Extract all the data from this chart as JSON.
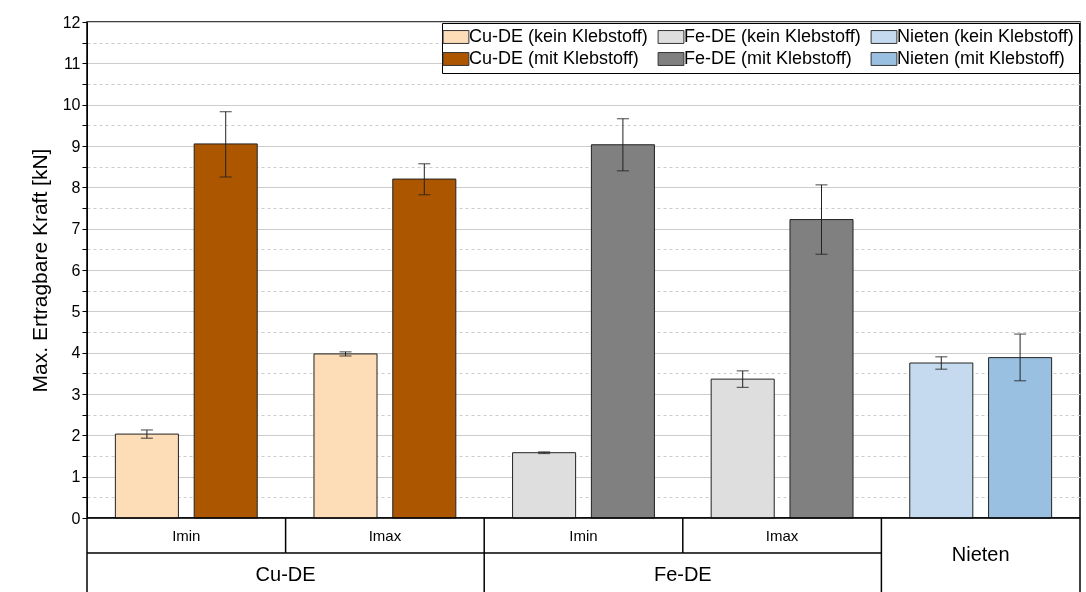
{
  "chart_data": {
    "type": "bar",
    "ylabel": "Max. Ertragbare Kraft [kN]",
    "categories": [
      "Imin",
      "Imax",
      "Imin",
      "Imax",
      "Nieten"
    ],
    "annotations": [
      "Cu-DE",
      "Fe-DE"
    ],
    "series": [
      {
        "name": "Cu-DE (kein Klebstoff)",
        "color": "#fddcb8",
        "values": [
          2.03,
          3.97,
          null,
          null,
          null
        ],
        "errors": [
          0.1,
          0.05,
          null,
          null,
          null
        ]
      },
      {
        "name": "Cu-DE (mit Klebstoff)",
        "color": "#ad5600",
        "values": [
          9.05,
          8.2,
          null,
          null,
          null
        ],
        "errors": [
          [
            8.25,
            9.83
          ],
          [
            7.82,
            8.57
          ],
          null,
          null,
          null
        ]
      },
      {
        "name": "Fe-DE (kein Klebstoff)",
        "color": "#dedede",
        "values": [
          null,
          null,
          1.58,
          3.36,
          null
        ],
        "errors": [
          null,
          null,
          0.02,
          [
            3.16,
            3.56
          ],
          null
        ]
      },
      {
        "name": "Fe-DE (mit Klebstoff)",
        "color": "#808080",
        "values": [
          null,
          null,
          9.03,
          7.22,
          null
        ],
        "errors": [
          null,
          null,
          [
            8.4,
            9.66
          ],
          [
            6.38,
            8.06
          ],
          null
        ]
      },
      {
        "name": "Nieten (kein Klebstoff)",
        "color": "#c5daee",
        "values": [
          null,
          null,
          null,
          null,
          3.75
        ],
        "errors": [
          null,
          null,
          null,
          null,
          [
            3.6,
            3.9
          ]
        ]
      },
      {
        "name": "Nieten (mit Klebstoff)",
        "color": "#99c0e0",
        "values": [
          null,
          null,
          null,
          null,
          3.88
        ],
        "errors": [
          null,
          null,
          null,
          null,
          [
            3.32,
            4.45
          ]
        ]
      }
    ],
    "ylim": [
      0,
      12
    ],
    "yticks": [
      0,
      {
        "value": 0.5,
        "label": null
      },
      1,
      {
        "value": 1.5,
        "label": null
      },
      2,
      {
        "value": 2.5,
        "label": null
      },
      3,
      {
        "value": 3.5,
        "label": null
      },
      4,
      {
        "value": 4.5,
        "label": null
      },
      5,
      {
        "value": 5.5,
        "label": null
      },
      6,
      {
        "value": 6.5,
        "label": null
      },
      7,
      {
        "value": 7.5,
        "label": null
      },
      8,
      {
        "value": 8.5,
        "label": null
      },
      9,
      {
        "value": 9.5,
        "label": null
      },
      10,
      {
        "value": 10.5,
        "label": null
      },
      11,
      {
        "value": 11.5,
        "label": null
      },
      12
    ],
    "grid": "y",
    "legend": "top right"
  }
}
